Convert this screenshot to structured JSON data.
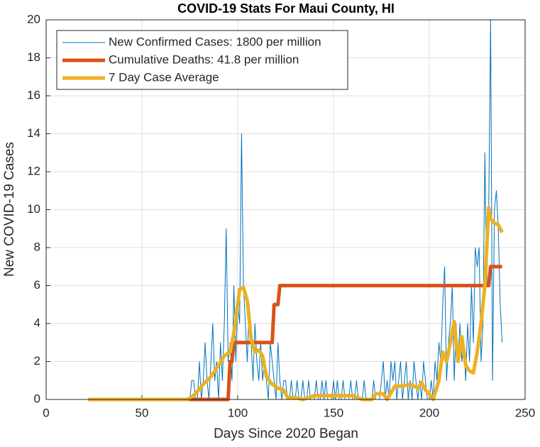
{
  "chart_data": {
    "type": "line",
    "title": "COVID-19 Stats For Maui County, HI",
    "x_label": "Days Since 2020 Began",
    "y_label": "New COVID-19 Cases",
    "xlim": [
      0,
      250
    ],
    "xticks": [
      0,
      50,
      100,
      150,
      200,
      250
    ],
    "ylim": [
      0,
      20
    ],
    "yticks": [
      0,
      2,
      4,
      6,
      8,
      10,
      12,
      14,
      16,
      18,
      20
    ],
    "grid": true,
    "legend": "upper left",
    "series": [
      {
        "name": "New Confirmed Cases: 1800 per million",
        "color": "#0072bd",
        "line_width": 1,
        "x": [
          22,
          74,
          75,
          76,
          77,
          78,
          79,
          80,
          81,
          82,
          83,
          84,
          85,
          86,
          87,
          88,
          89,
          90,
          91,
          92,
          93,
          94,
          95,
          96,
          97,
          98,
          99,
          100,
          101,
          102,
          103,
          104,
          105,
          106,
          107,
          108,
          109,
          110,
          111,
          112,
          113,
          114,
          115,
          116,
          117,
          118,
          119,
          120,
          121,
          122,
          123,
          124,
          125,
          126,
          127,
          128,
          129,
          130,
          131,
          132,
          133,
          134,
          135,
          136,
          137,
          138,
          139,
          140,
          141,
          142,
          143,
          144,
          145,
          146,
          147,
          148,
          149,
          150,
          151,
          152,
          153,
          154,
          155,
          156,
          157,
          158,
          159,
          160,
          161,
          162,
          163,
          164,
          165,
          166,
          167,
          168,
          169,
          170,
          171,
          172,
          173,
          174,
          175,
          176,
          177,
          178,
          179,
          180,
          181,
          182,
          183,
          184,
          185,
          186,
          187,
          188,
          189,
          190,
          191,
          192,
          193,
          194,
          195,
          196,
          197,
          198,
          199,
          200,
          201,
          202,
          203,
          204,
          205,
          206,
          207,
          208,
          209,
          210,
          211,
          212,
          213,
          214,
          215,
          216,
          217,
          218,
          219,
          220,
          221,
          222,
          223,
          224,
          225,
          226,
          227,
          228,
          229,
          230,
          231,
          232,
          233,
          234,
          235,
          236,
          237,
          238
        ],
        "values": [
          0,
          0,
          0,
          1,
          1,
          0,
          0,
          2,
          0,
          1,
          3,
          1,
          0,
          2,
          4,
          1,
          2,
          0,
          3,
          1,
          4,
          9,
          2,
          3,
          1,
          6,
          2,
          5,
          4,
          14,
          6,
          4,
          2,
          5,
          3,
          1,
          4,
          2,
          1,
          3,
          1,
          2,
          1,
          0,
          3,
          2,
          1,
          0,
          3,
          1,
          0,
          1,
          1,
          0,
          0,
          1,
          0,
          0,
          1,
          0,
          0,
          1,
          0,
          0,
          1,
          0,
          0,
          0,
          1,
          0,
          0,
          1,
          0,
          1,
          0,
          0,
          0,
          1,
          0,
          1,
          0,
          0,
          1,
          0,
          0,
          0,
          1,
          0,
          0,
          1,
          0,
          0,
          0,
          1,
          0,
          0,
          0,
          0,
          1,
          0,
          0,
          0,
          1,
          2,
          0,
          1,
          0,
          2,
          1,
          2,
          0,
          1,
          2,
          0,
          1,
          2,
          0,
          1,
          0,
          2,
          1,
          0,
          1,
          0,
          2,
          1,
          0,
          0,
          1,
          0,
          2,
          1,
          3,
          2,
          5,
          7,
          1,
          3,
          4,
          6,
          1,
          4,
          2,
          4,
          2,
          3,
          1,
          4,
          2,
          6,
          3,
          8,
          7,
          8,
          2,
          4,
          13,
          6,
          10,
          20,
          1,
          10,
          11,
          9,
          5,
          3
        ]
      },
      {
        "name": "Cumulative Deaths: 41.8 per million",
        "color": "#d95319",
        "line_width": 5,
        "x": [
          22,
          95,
          96,
          97,
          98,
          99,
          118,
          119,
          121,
          122,
          123,
          230,
          231,
          232,
          238
        ],
        "values": [
          0,
          0,
          2,
          2,
          3,
          3,
          3,
          5,
          5,
          6,
          6,
          6,
          6,
          7,
          7
        ]
      },
      {
        "name": "7 Day Case Average",
        "color": "#edb120",
        "line_width": 5,
        "x": [
          22,
          74,
          78,
          82,
          86,
          90,
          93,
          96,
          98,
          101,
          103,
          105,
          107,
          109,
          111,
          113,
          115,
          118,
          121,
          124,
          126,
          130,
          134,
          140,
          150,
          160,
          165,
          170,
          172,
          176,
          178,
          182,
          186,
          190,
          194,
          196,
          198,
          200,
          202,
          205,
          207,
          209,
          211,
          213,
          215,
          217,
          219,
          221,
          223,
          225,
          227,
          229,
          231,
          232,
          234,
          236,
          238
        ],
        "values": [
          0,
          0,
          0.3,
          0.8,
          1.2,
          1.8,
          2.3,
          2.5,
          3.5,
          5.8,
          5.9,
          5.2,
          3.2,
          2.5,
          2.6,
          2.3,
          1.2,
          0.8,
          0.6,
          0.5,
          0.1,
          0.1,
          0,
          0.2,
          0.2,
          0.2,
          0,
          0,
          0.3,
          0.3,
          0,
          0.7,
          0.7,
          0.8,
          0.6,
          0.9,
          0.5,
          0.3,
          0,
          1,
          2.5,
          2,
          3,
          4.1,
          2,
          3.3,
          1.8,
          1.5,
          1.4,
          2.5,
          4,
          6,
          10.1,
          9.5,
          9.3,
          9.2,
          8.8
        ]
      }
    ]
  }
}
